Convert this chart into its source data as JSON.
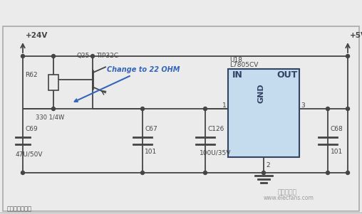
{
  "bg_color": "#ebebeb",
  "line_color": "#444444",
  "blue_color": "#3366bb",
  "ic_fill": "#c5dcee",
  "ic_border": "#334466",
  "labels": {
    "v24": "+24V",
    "v5": "+5V",
    "q25": "Q25",
    "tip32c": "TIP32C",
    "change": "Change to 22 OHM",
    "r62": "R62",
    "r62val": "330 1/4W",
    "u18": "U18",
    "l7805cv": "L7805CV",
    "in_label": "IN",
    "out_label": "OUT",
    "gnd_label": "GND",
    "c67": "C67",
    "c67val": "101",
    "c69": "C69",
    "c69val": "47U/50V",
    "c126": "C126",
    "c126val": "100U/35V",
    "c68": "C68",
    "c68val": "101",
    "pin1": "1",
    "pin2": "2",
    "pin3": "3"
  }
}
